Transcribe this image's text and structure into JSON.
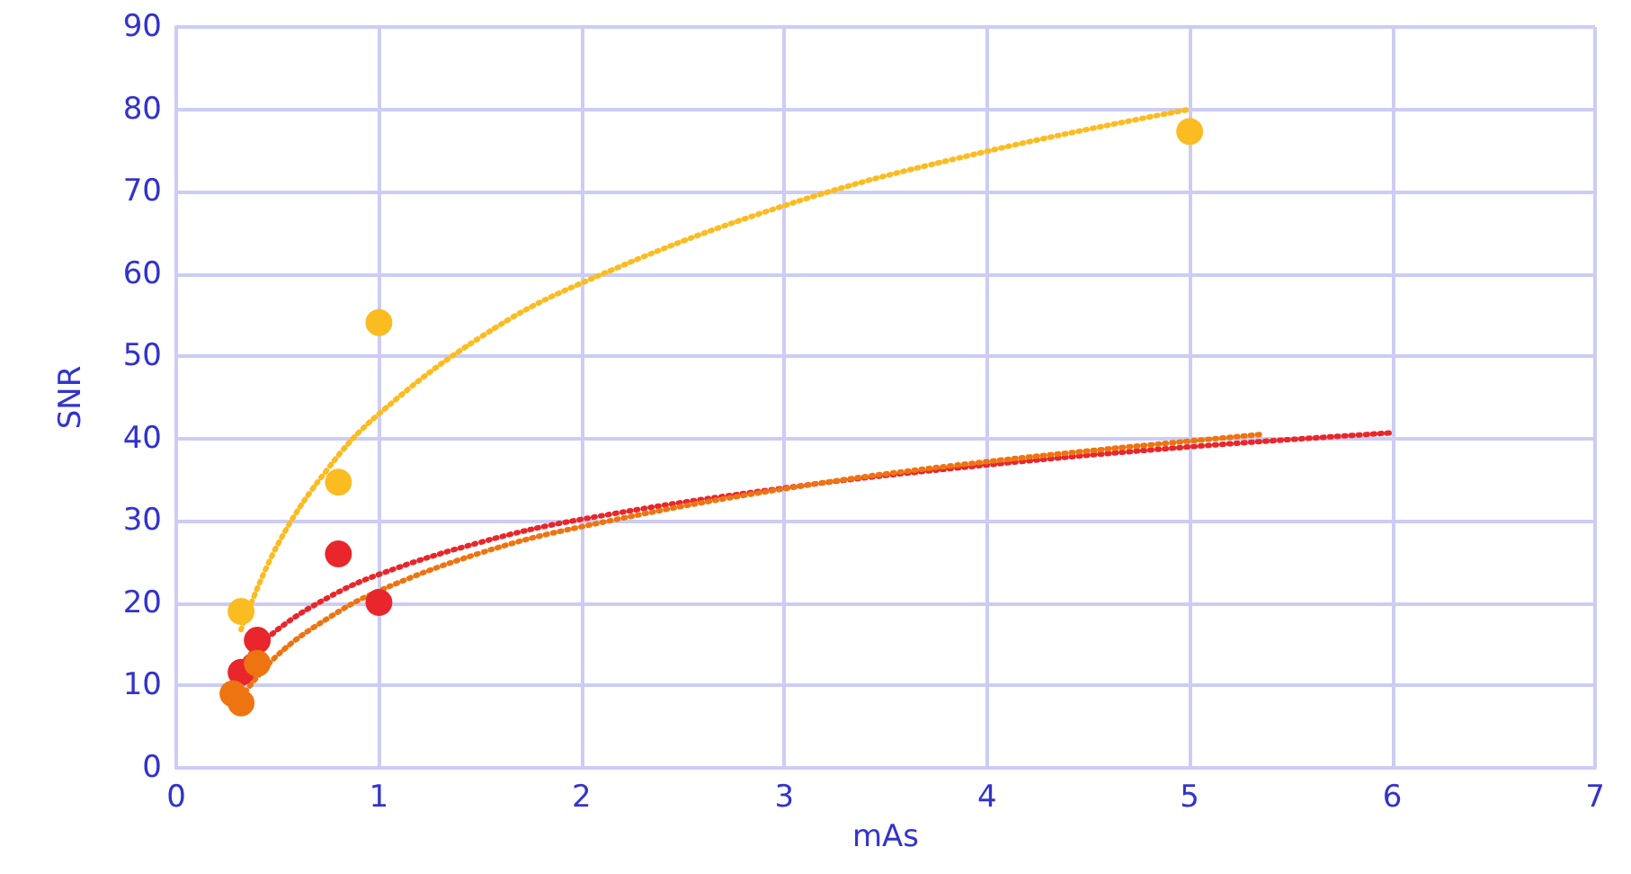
{
  "chart_data": {
    "type": "scatter",
    "xlabel": "mAs",
    "ylabel": "SNR",
    "xlim": [
      0,
      7
    ],
    "xticks": [
      0,
      1,
      2,
      3,
      4,
      5,
      6,
      7
    ],
    "ylim": [
      0,
      90
    ],
    "yticks": [
      0,
      10,
      20,
      30,
      40,
      50,
      60,
      70,
      80,
      90
    ],
    "grid": true,
    "marker": "circle",
    "series": [
      {
        "color": "#fbbc22",
        "x": [
          0.32,
          0.8,
          1,
          5
        ],
        "values": [
          19,
          34.7,
          54.1,
          77.3
        ]
      },
      {
        "color": "#e8262b",
        "x": [
          0.32,
          0.4,
          0.8,
          1
        ],
        "values": [
          11.6,
          15.5,
          26,
          20.1
        ]
      },
      {
        "color": "#ee7411",
        "x": [
          0.28,
          0.32,
          0.4
        ],
        "values": [
          9,
          7.9,
          12.7
        ]
      },
      {
        "type": "line",
        "line_style": "dotted",
        "marker": "none",
        "color": "#fbbc22",
        "x": [
          0.32,
          0.5,
          0.75,
          1,
          1.5,
          2,
          3,
          4,
          5
        ],
        "values": [
          16.8,
          27.1,
          36.4,
          43,
          52.3,
          58.9,
          68.3,
          74.9,
          80
        ]
      },
      {
        "type": "line",
        "line_style": "dotted",
        "marker": "none",
        "color": "#e8262b",
        "x": [
          0.32,
          0.5,
          0.75,
          1,
          1.5,
          2,
          3,
          4,
          5,
          6
        ],
        "values": [
          12.6,
          16.8,
          20.7,
          23.5,
          27.4,
          30.2,
          34,
          36.8,
          39,
          40.7
        ]
      },
      {
        "type": "line",
        "line_style": "dotted",
        "marker": "none",
        "color": "#ee7411",
        "x": [
          0.32,
          0.5,
          0.75,
          1,
          1.5,
          2,
          3,
          4,
          5.35
        ],
        "values": [
          8.6,
          13.7,
          18.2,
          21.5,
          26.1,
          29.3,
          33.9,
          37.2,
          40.5
        ]
      }
    ]
  }
}
